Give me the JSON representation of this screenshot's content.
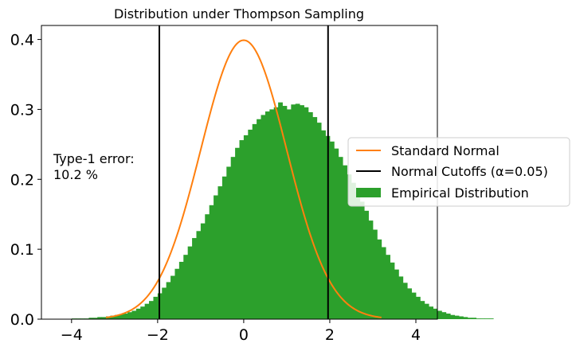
{
  "chart_data": {
    "type": "histogram",
    "title": "Distribution under Thompson Sampling",
    "xlabel": "",
    "ylabel": "",
    "xlim": [
      -4.7,
      4.5
    ],
    "ylim": [
      0.0,
      0.42
    ],
    "x_ticks": [
      -4,
      -2,
      0,
      2,
      4
    ],
    "x_tick_labels": [
      "−4",
      "−2",
      "0",
      "2",
      "4"
    ],
    "y_ticks": [
      0.0,
      0.1,
      0.2,
      0.3,
      0.4
    ],
    "y_tick_labels": [
      "0.0",
      "0.1",
      "0.2",
      "0.3",
      "0.4"
    ],
    "grid": false,
    "legend_position": "right",
    "annotation": {
      "line1": "Type-1 error:",
      "line2": "10.2 %"
    },
    "series": [
      {
        "name": "Standard Normal",
        "kind": "line",
        "color": "#ff7f0e",
        "function": "standard_normal_pdf",
        "x_range": [
          -3.2,
          3.2
        ]
      },
      {
        "name": "Normal Cutoffs (α=0.05)",
        "kind": "vlines",
        "color": "#000000",
        "x": [
          -1.96,
          1.96
        ]
      },
      {
        "name": "Empirical Distribution",
        "kind": "histogram",
        "color": "#2ca02c",
        "bin_start": -4.0,
        "bin_width": 0.1,
        "values": [
          0.001,
          0.001,
          0.001,
          0.001,
          0.002,
          0.002,
          0.003,
          0.003,
          0.004,
          0.005,
          0.006,
          0.007,
          0.008,
          0.01,
          0.012,
          0.015,
          0.018,
          0.022,
          0.026,
          0.032,
          0.037,
          0.045,
          0.053,
          0.062,
          0.072,
          0.082,
          0.092,
          0.104,
          0.116,
          0.126,
          0.137,
          0.15,
          0.163,
          0.177,
          0.19,
          0.204,
          0.218,
          0.232,
          0.245,
          0.256,
          0.263,
          0.271,
          0.279,
          0.286,
          0.292,
          0.297,
          0.3,
          0.303,
          0.31,
          0.305,
          0.3,
          0.307,
          0.308,
          0.306,
          0.303,
          0.296,
          0.289,
          0.281,
          0.27,
          0.262,
          0.254,
          0.244,
          0.232,
          0.22,
          0.207,
          0.195,
          0.182,
          0.168,
          0.155,
          0.141,
          0.128,
          0.114,
          0.103,
          0.092,
          0.081,
          0.071,
          0.061,
          0.052,
          0.044,
          0.038,
          0.032,
          0.026,
          0.022,
          0.018,
          0.015,
          0.012,
          0.01,
          0.008,
          0.006,
          0.005,
          0.004,
          0.003,
          0.002,
          0.002,
          0.001,
          0.001,
          0.001,
          0.001
        ]
      }
    ]
  }
}
